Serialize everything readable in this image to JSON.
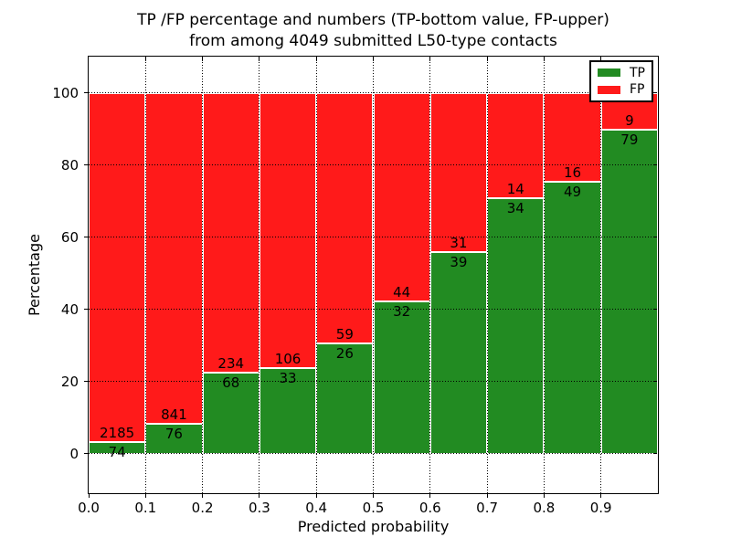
{
  "title": {
    "line1": "TP /FP percentage and numbers (TP-bottom value, FP-upper)",
    "line2": "from among 4049 submitted L50-type contacts"
  },
  "axes": {
    "xlabel": "Predicted probability",
    "ylabel": "Percentage",
    "xtick_labels": [
      "0.0",
      "0.1",
      "0.2",
      "0.3",
      "0.4",
      "0.5",
      "0.6",
      "0.7",
      "0.8",
      "0.9"
    ],
    "xtick_values": [
      0.0,
      0.1,
      0.2,
      0.3,
      0.4,
      0.5,
      0.6,
      0.7,
      0.8,
      0.9
    ],
    "ytick_values": [
      0,
      20,
      40,
      60,
      80,
      100
    ],
    "xlim": [
      0.0,
      1.0
    ],
    "ylim": [
      -11,
      110
    ],
    "grid": "dotted black, drawn above bars"
  },
  "legend": {
    "position": "upper-right",
    "items": [
      {
        "label": "TP",
        "color": "#228b22"
      },
      {
        "label": "FP",
        "color": "#ff1a1a"
      }
    ]
  },
  "chart_data": {
    "type": "bar",
    "stacked": true,
    "normalized": "each bar totals 100%",
    "title": "TP /FP percentage and numbers (TP-bottom value, FP-upper) from among 4049 submitted L50-type contacts",
    "xlabel": "Predicted probability",
    "ylabel": "Percentage",
    "total_submitted_contacts": 4049,
    "bin_starts": [
      0.0,
      0.1,
      0.2,
      0.3,
      0.4,
      0.5,
      0.6,
      0.7,
      0.8,
      0.9
    ],
    "bin_width": 0.1,
    "series": [
      {
        "name": "TP",
        "color": "#228b22",
        "counts": [
          74,
          76,
          68,
          33,
          26,
          32,
          39,
          34,
          49,
          79
        ],
        "percent": [
          3.3,
          8.3,
          22.5,
          23.7,
          30.6,
          42.1,
          55.7,
          70.8,
          75.4,
          89.8
        ]
      },
      {
        "name": "FP",
        "color": "#ff1a1a",
        "counts": [
          2185,
          841,
          234,
          106,
          59,
          44,
          31,
          14,
          16,
          9
        ],
        "percent": [
          96.7,
          91.7,
          77.5,
          76.3,
          69.4,
          57.9,
          44.3,
          29.2,
          24.6,
          10.2
        ]
      }
    ],
    "bar_label_rule": "FP count printed just above TP/FP boundary, TP count just below it",
    "ylim": [
      -11,
      110
    ],
    "yticks": [
      0,
      20,
      40,
      60,
      80,
      100
    ]
  }
}
